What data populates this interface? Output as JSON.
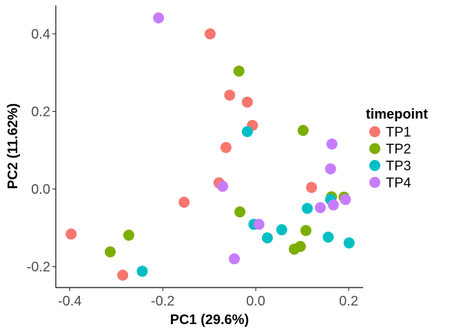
{
  "chart_data": {
    "type": "scatter",
    "xlabel": "PC1 (29.6%)",
    "ylabel": "PC2 (11.62%)",
    "xlim": [
      -0.43,
      0.231
    ],
    "ylim": [
      -0.254,
      0.473
    ],
    "xticks": [
      -0.4,
      -0.2,
      0.0,
      0.2
    ],
    "xtick_labels": [
      "-0.4",
      "-0.2",
      "0.0",
      "0.2"
    ],
    "yticks": [
      -0.2,
      0.0,
      0.2,
      0.4
    ],
    "ytick_labels": [
      "-0.2",
      "0.0",
      "0.2",
      "0.4"
    ],
    "grid": false,
    "legend": {
      "title": "timepoint",
      "placement": "right"
    },
    "series": [
      {
        "name": "TP1",
        "color": "#F8766D",
        "points": [
          [
            -0.397,
            -0.116
          ],
          [
            -0.286,
            -0.222
          ],
          [
            -0.154,
            -0.034
          ],
          [
            -0.098,
            0.4
          ],
          [
            -0.056,
            0.242
          ],
          [
            -0.018,
            0.224
          ],
          [
            -0.007,
            0.164
          ],
          [
            -0.064,
            0.107
          ],
          [
            -0.079,
            0.016
          ],
          [
            0.12,
            0.004
          ]
        ]
      },
      {
        "name": "TP2",
        "color": "#7CAE00",
        "points": [
          [
            -0.313,
            -0.162
          ],
          [
            -0.273,
            -0.119
          ],
          [
            -0.036,
            0.304
          ],
          [
            -0.034,
            -0.059
          ],
          [
            0.102,
            0.151
          ],
          [
            0.108,
            -0.107
          ],
          [
            0.096,
            -0.148
          ],
          [
            0.083,
            -0.155
          ],
          [
            0.163,
            -0.02
          ],
          [
            0.19,
            -0.021
          ]
        ]
      },
      {
        "name": "TP3",
        "color": "#00BFC4",
        "points": [
          [
            -0.244,
            -0.212
          ],
          [
            -0.018,
            0.148
          ],
          [
            -0.004,
            -0.091
          ],
          [
            0.025,
            -0.126
          ],
          [
            0.056,
            -0.105
          ],
          [
            0.111,
            -0.05
          ],
          [
            0.156,
            -0.124
          ],
          [
            0.161,
            -0.027
          ],
          [
            0.201,
            -0.139
          ]
        ]
      },
      {
        "name": "TP4",
        "color": "#C77CFF",
        "points": [
          [
            -0.209,
            0.441
          ],
          [
            -0.071,
            0.007
          ],
          [
            0.007,
            -0.091
          ],
          [
            -0.046,
            -0.18
          ],
          [
            0.164,
            0.116
          ],
          [
            0.161,
            0.052
          ],
          [
            0.139,
            -0.048
          ],
          [
            0.167,
            -0.041
          ],
          [
            0.193,
            -0.027
          ]
        ]
      }
    ]
  }
}
